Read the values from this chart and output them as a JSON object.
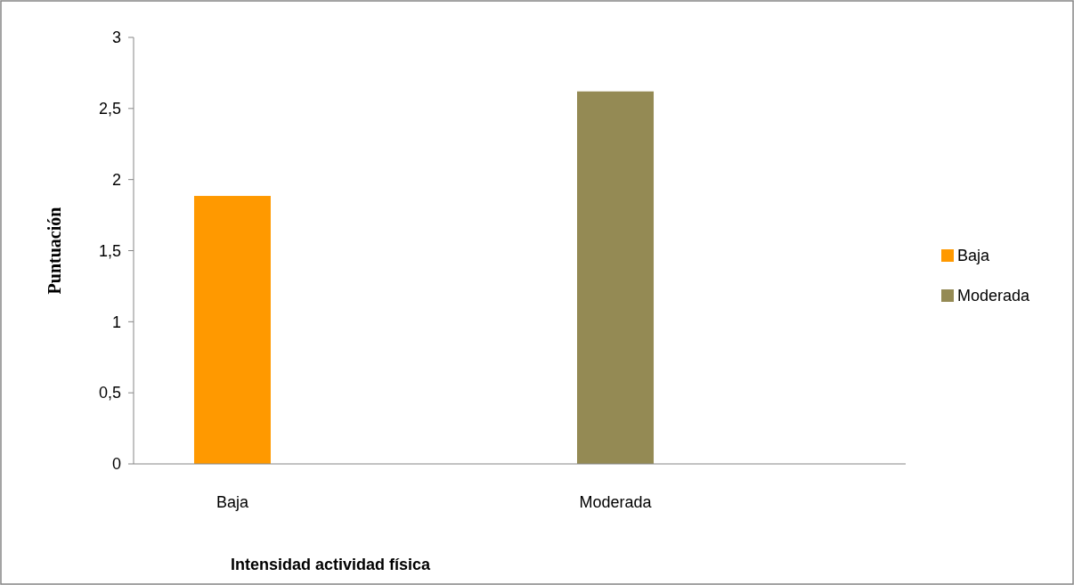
{
  "chart_data": {
    "type": "bar",
    "xlabel": "Intensidad actividad física",
    "ylabel": "Puntuación",
    "categories": [
      "Baja",
      "Moderada"
    ],
    "series": [
      {
        "name": "Baja",
        "color": "#ff9900",
        "values": [
          1.885,
          null
        ]
      },
      {
        "name": "Moderada",
        "color": "#948a54",
        "values": [
          null,
          2.62
        ]
      }
    ],
    "ylim": [
      0,
      3
    ],
    "yticks": [
      0,
      {
        "value": 0.5,
        "label": "0,5"
      },
      1,
      {
        "value": 1.5,
        "label": "1,5"
      },
      2,
      {
        "value": 2.5,
        "label": "2,5"
      },
      3
    ],
    "grid": false,
    "legend": "right"
  }
}
